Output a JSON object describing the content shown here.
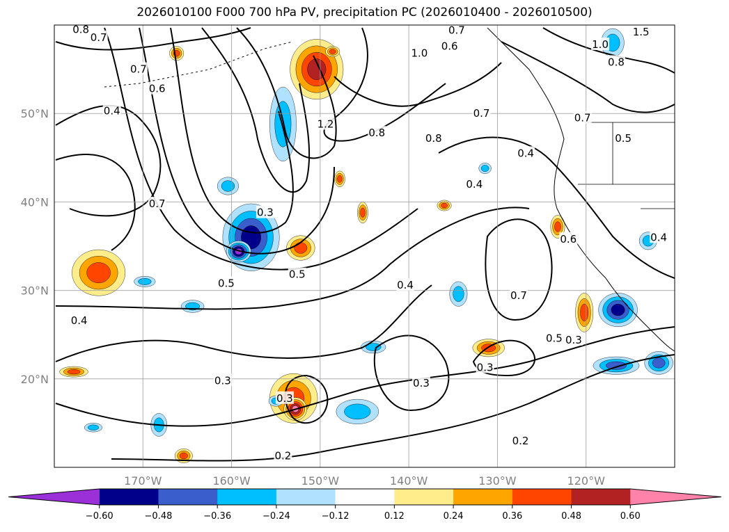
{
  "chart_data": {
    "type": "heatmap",
    "title": "2026010100 F000 700 hPa PV, precipitation PC (2026010400 - 2026010500)",
    "map": {
      "lon_range": [
        -180,
        -110
      ],
      "lat_range": [
        10,
        60
      ],
      "lat_ticks": [
        20,
        30,
        40,
        50
      ],
      "lat_tick_labels": [
        "20°N",
        "30°N",
        "40°N",
        "50°N"
      ],
      "lon_ticks": [
        -170,
        -160,
        -150,
        -140,
        -130,
        -120
      ],
      "lon_tick_labels": [
        "170°W",
        "160°W",
        "150°W",
        "140°W",
        "130°W",
        "120°W"
      ],
      "grid": true,
      "coastlines": true
    },
    "pv_contour_labels": [
      {
        "text": "0.8",
        "lon": -177.0,
        "lat": 59.5
      },
      {
        "text": "0.7",
        "lon": -175.0,
        "lat": 58.6
      },
      {
        "text": "0.7",
        "lon": -134.6,
        "lat": 59.4
      },
      {
        "text": "0.6",
        "lon": -135.4,
        "lat": 57.6
      },
      {
        "text": "1.0",
        "lon": -138.8,
        "lat": 56.8
      },
      {
        "text": "1.2",
        "lon": -149.4,
        "lat": 48.8
      },
      {
        "text": "0.8",
        "lon": -143.6,
        "lat": 47.8
      },
      {
        "text": "0.8",
        "lon": -137.2,
        "lat": 47.2
      },
      {
        "text": "0.7",
        "lon": -131.8,
        "lat": 50.0
      },
      {
        "text": "0.4",
        "lon": -126.8,
        "lat": 45.5
      },
      {
        "text": "0.4",
        "lon": -132.6,
        "lat": 42.0
      },
      {
        "text": "0.6",
        "lon": -168.4,
        "lat": 52.8
      },
      {
        "text": "0.4",
        "lon": -173.5,
        "lat": 50.3
      },
      {
        "text": "0.7",
        "lon": -170.5,
        "lat": 55.0
      },
      {
        "text": "0.7",
        "lon": -168.4,
        "lat": 39.8
      },
      {
        "text": "0.3",
        "lon": -156.2,
        "lat": 38.8
      },
      {
        "text": "0.5",
        "lon": -160.6,
        "lat": 30.8
      },
      {
        "text": "0.5",
        "lon": -152.6,
        "lat": 31.8
      },
      {
        "text": "0.4",
        "lon": -140.4,
        "lat": 30.6
      },
      {
        "text": "0.7",
        "lon": -127.6,
        "lat": 29.4
      },
      {
        "text": "0.5",
        "lon": -123.6,
        "lat": 24.6
      },
      {
        "text": "0.3",
        "lon": -131.4,
        "lat": 21.3
      },
      {
        "text": "0.3",
        "lon": -138.6,
        "lat": 19.5
      },
      {
        "text": "0.3",
        "lon": -161.0,
        "lat": 19.8
      },
      {
        "text": "0.3",
        "lon": -154.0,
        "lat": 17.8
      },
      {
        "text": "0.2",
        "lon": -154.2,
        "lat": 11.3
      },
      {
        "text": "0.2",
        "lon": -127.4,
        "lat": 13.0
      },
      {
        "text": "0.4",
        "lon": -177.2,
        "lat": 26.6
      },
      {
        "text": "0.5",
        "lon": -115.8,
        "lat": 47.2
      },
      {
        "text": "0.6",
        "lon": -122.0,
        "lat": 35.8
      },
      {
        "text": "0.3",
        "lon": -121.4,
        "lat": 24.4
      },
      {
        "text": "0.4",
        "lon": -111.8,
        "lat": 36.0
      },
      {
        "text": "1.5",
        "lon": -113.8,
        "lat": 59.2
      },
      {
        "text": "1.0",
        "lon": -118.4,
        "lat": 57.8
      },
      {
        "text": "0.8",
        "lon": -116.6,
        "lat": 55.8
      },
      {
        "text": "0.7",
        "lon": -120.4,
        "lat": 49.5
      }
    ],
    "precip_pc_anomalies": [
      {
        "lon": -150.4,
        "lat": 55.0,
        "rx": 3.0,
        "ry": 3.4,
        "value": 0.5
      },
      {
        "lon": -157.8,
        "lat": 36.0,
        "rx": 3.2,
        "ry": 3.8,
        "value": -0.5
      },
      {
        "lon": -159.2,
        "lat": 34.4,
        "rx": 1.4,
        "ry": 1.2,
        "value": -0.65
      },
      {
        "lon": -154.2,
        "lat": 48.8,
        "rx": 1.5,
        "ry": 4.2,
        "value": -0.3
      },
      {
        "lon": -152.2,
        "lat": 34.8,
        "rx": 1.6,
        "ry": 1.4,
        "value": 0.4
      },
      {
        "lon": -175.0,
        "lat": 32.0,
        "rx": 3.0,
        "ry": 2.6,
        "value": 0.4
      },
      {
        "lon": -153.0,
        "lat": 17.8,
        "rx": 2.7,
        "ry": 2.8,
        "value": 0.45
      },
      {
        "lon": -152.8,
        "lat": 16.6,
        "rx": 1.3,
        "ry": 1.3,
        "value": 0.65
      },
      {
        "lon": -145.8,
        "lat": 16.3,
        "rx": 2.4,
        "ry": 1.4,
        "value": -0.35
      },
      {
        "lon": -164.4,
        "lat": 28.2,
        "rx": 1.3,
        "ry": 0.7,
        "value": -0.3
      },
      {
        "lon": -131.0,
        "lat": 23.5,
        "rx": 1.8,
        "ry": 1.0,
        "value": 0.38
      },
      {
        "lon": -120.2,
        "lat": 27.5,
        "rx": 1.0,
        "ry": 2.2,
        "value": 0.45
      },
      {
        "lon": -116.4,
        "lat": 27.8,
        "rx": 2.2,
        "ry": 1.9,
        "value": -0.5
      },
      {
        "lon": -111.8,
        "lat": 21.8,
        "rx": 1.6,
        "ry": 1.3,
        "value": -0.45
      },
      {
        "lon": -116.6,
        "lat": 21.5,
        "rx": 2.6,
        "ry": 1.0,
        "value": -0.38
      },
      {
        "lon": -134.4,
        "lat": 29.6,
        "rx": 1.0,
        "ry": 1.4,
        "value": -0.3
      },
      {
        "lon": -144.0,
        "lat": 23.6,
        "rx": 1.4,
        "ry": 0.7,
        "value": -0.3
      },
      {
        "lon": -168.2,
        "lat": 14.8,
        "rx": 0.9,
        "ry": 1.3,
        "value": -0.3
      },
      {
        "lon": -165.4,
        "lat": 11.3,
        "rx": 1.0,
        "ry": 0.8,
        "value": 0.4
      },
      {
        "lon": -177.8,
        "lat": 20.8,
        "rx": 1.6,
        "ry": 0.6,
        "value": 0.38
      },
      {
        "lon": -123.2,
        "lat": 37.2,
        "rx": 0.8,
        "ry": 1.3,
        "value": 0.4
      },
      {
        "lon": -113.0,
        "lat": 35.6,
        "rx": 1.0,
        "ry": 1.0,
        "value": -0.3
      },
      {
        "lon": -117.0,
        "lat": 58.0,
        "rx": 1.3,
        "ry": 1.6,
        "value": -0.35
      },
      {
        "lon": -145.2,
        "lat": 38.8,
        "rx": 0.6,
        "ry": 1.2,
        "value": 0.38
      },
      {
        "lon": -147.8,
        "lat": 42.6,
        "rx": 0.6,
        "ry": 0.9,
        "value": 0.38
      },
      {
        "lon": -160.4,
        "lat": 41.8,
        "rx": 1.2,
        "ry": 1.0,
        "value": -0.3
      },
      {
        "lon": -166.2,
        "lat": 56.8,
        "rx": 0.8,
        "ry": 0.8,
        "value": 0.4
      },
      {
        "lon": -148.6,
        "lat": 57.0,
        "rx": 0.8,
        "ry": 0.6,
        "value": 0.4
      },
      {
        "lon": -136.0,
        "lat": 39.6,
        "rx": 0.8,
        "ry": 0.6,
        "value": 0.4
      },
      {
        "lon": -131.4,
        "lat": 43.8,
        "rx": 0.7,
        "ry": 0.6,
        "value": -0.3
      },
      {
        "lon": -169.8,
        "lat": 31.0,
        "rx": 1.2,
        "ry": 0.6,
        "value": -0.3
      },
      {
        "lon": -155.0,
        "lat": 17.5,
        "rx": 0.8,
        "ry": 0.6,
        "value": -0.3
      },
      {
        "lon": -175.6,
        "lat": 14.5,
        "rx": 1.0,
        "ry": 0.5,
        "value": -0.3
      }
    ],
    "colorbar": {
      "boundaries": [
        -0.72,
        -0.6,
        -0.48,
        -0.36,
        -0.24,
        -0.12,
        0.12,
        0.24,
        0.36,
        0.48,
        0.6,
        0.72
      ],
      "tick_values": [
        -0.6,
        -0.48,
        -0.36,
        -0.24,
        -0.12,
        0.12,
        0.24,
        0.36,
        0.48,
        0.6
      ],
      "tick_labels": [
        "−0.60",
        "−0.48",
        "−0.36",
        "−0.24",
        "−0.12",
        "0.12",
        "0.24",
        "0.36",
        "0.48",
        "0.60"
      ],
      "colors": [
        "#9b30d9",
        "#00008b",
        "#3a5fcd",
        "#00bfff",
        "#b0e2ff",
        "#ffffff",
        "#ffec8b",
        "#ffa500",
        "#ff4500",
        "#b22222",
        "#ff82ab"
      ],
      "extend": "both"
    }
  }
}
